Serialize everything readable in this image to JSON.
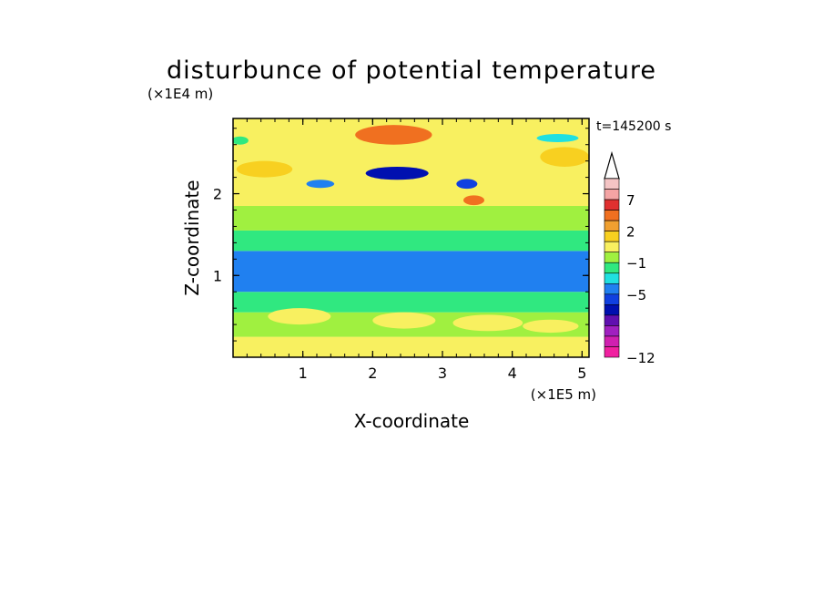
{
  "chart_data": {
    "type": "heatmap",
    "title": "disturbunce of potential temperature",
    "time_label": "t=145200 s",
    "xlabel": "X-coordinate",
    "ylabel": "Z-coordinate",
    "x_unit": "(×1E5 m)",
    "y_unit": "(×1E4 m)",
    "xlim": [
      0,
      5.1
    ],
    "ylim": [
      0,
      2.92
    ],
    "x_ticks": [
      1,
      2,
      3,
      4,
      5
    ],
    "y_ticks": [
      1,
      2
    ],
    "colorbar": {
      "labeled_levels": [
        7,
        2,
        -1,
        -5,
        -12
      ],
      "colors_top_to_bottom": [
        "#f4c4c4",
        "#f4a4a4",
        "#e03030",
        "#f07020",
        "#f0a030",
        "#f8d020",
        "#f8f060",
        "#a0f040",
        "#30e880",
        "#20e0e0",
        "#2080f0",
        "#1040e0",
        "#0010b0",
        "#6010b0",
        "#a020c0",
        "#d020b0",
        "#f020a0"
      ]
    },
    "bands": [
      {
        "z_range": [
          0.0,
          0.25
        ],
        "x_range": [
          0,
          5.1
        ],
        "level": 2
      },
      {
        "z_range": [
          0.25,
          0.55
        ],
        "x_range": [
          0,
          5.1
        ],
        "level": 1
      },
      {
        "z_range": [
          0.55,
          0.8
        ],
        "x_range": [
          0,
          5.1
        ],
        "level": 0
      },
      {
        "z_range": [
          0.8,
          1.3
        ],
        "x_range": [
          0,
          5.1
        ],
        "level": -4
      },
      {
        "z_range": [
          1.3,
          1.55
        ],
        "x_range": [
          0,
          5.1
        ],
        "level": -1
      },
      {
        "z_range": [
          1.55,
          1.85
        ],
        "x_range": [
          0,
          5.1
        ],
        "level": 1
      },
      {
        "z_range": [
          1.85,
          2.92
        ],
        "x_range": [
          0,
          5.1
        ],
        "level": 2
      }
    ],
    "features": [
      {
        "x": 2.35,
        "z": 2.25,
        "dx": 0.45,
        "dz": 0.08,
        "level": -6
      },
      {
        "x": 3.35,
        "z": 2.12,
        "dx": 0.15,
        "dz": 0.06,
        "level": -5
      },
      {
        "x": 1.25,
        "z": 2.12,
        "dx": 0.2,
        "dz": 0.05,
        "level": -3
      },
      {
        "x": 2.3,
        "z": 2.72,
        "dx": 0.55,
        "dz": 0.12,
        "level": 4
      },
      {
        "x": 3.45,
        "z": 1.92,
        "dx": 0.15,
        "dz": 0.06,
        "level": 4
      },
      {
        "x": 4.75,
        "z": 2.45,
        "dx": 0.35,
        "dz": 0.12,
        "level": 3
      },
      {
        "x": 0.45,
        "z": 2.3,
        "dx": 0.4,
        "dz": 0.1,
        "level": 3
      },
      {
        "x": 4.65,
        "z": 2.68,
        "dx": 0.3,
        "dz": 0.05,
        "level": -2
      },
      {
        "x": 0.1,
        "z": 2.65,
        "dx": 0.12,
        "dz": 0.05,
        "level": -1
      },
      {
        "x": 0.95,
        "z": 0.5,
        "dx": 0.45,
        "dz": 0.1,
        "level": 2
      },
      {
        "x": 2.45,
        "z": 0.45,
        "dx": 0.45,
        "dz": 0.1,
        "level": 2
      },
      {
        "x": 3.65,
        "z": 0.42,
        "dx": 0.5,
        "dz": 0.1,
        "level": 2
      },
      {
        "x": 4.55,
        "z": 0.38,
        "dx": 0.4,
        "dz": 0.08,
        "level": 2
      }
    ]
  }
}
